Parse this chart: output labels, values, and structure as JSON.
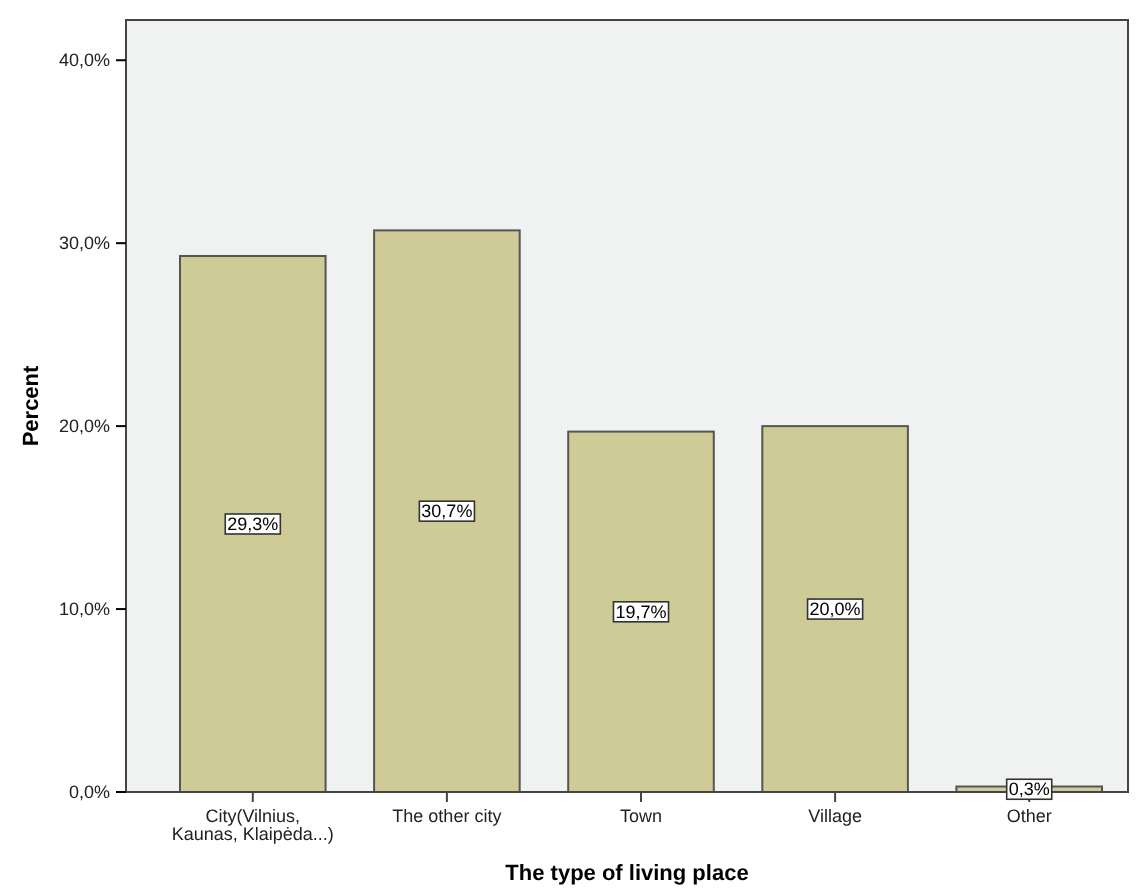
{
  "chart_data": {
    "type": "bar",
    "xlabel": "The type of living place",
    "ylabel": "Percent",
    "categories": [
      "City(Vilnius,\nKaunas, Klaipėda...)",
      "The other city",
      "Town",
      "Village",
      "Other"
    ],
    "values": [
      29.3,
      30.7,
      19.7,
      20.0,
      0.3
    ],
    "value_labels": [
      "29,3%",
      "30,7%",
      "19,7%",
      "20,0%",
      "0,3%"
    ],
    "color": "#cfcb97",
    "ylim": [
      0,
      42.2
    ],
    "yticks": [
      {
        "value": 0,
        "label": "0,0%"
      },
      {
        "value": 10,
        "label": "10,0%"
      },
      {
        "value": 20,
        "label": "20,0%"
      },
      {
        "value": 30,
        "label": "30,0%"
      },
      {
        "value": 40,
        "label": "40,0%"
      }
    ],
    "grid": false
  }
}
